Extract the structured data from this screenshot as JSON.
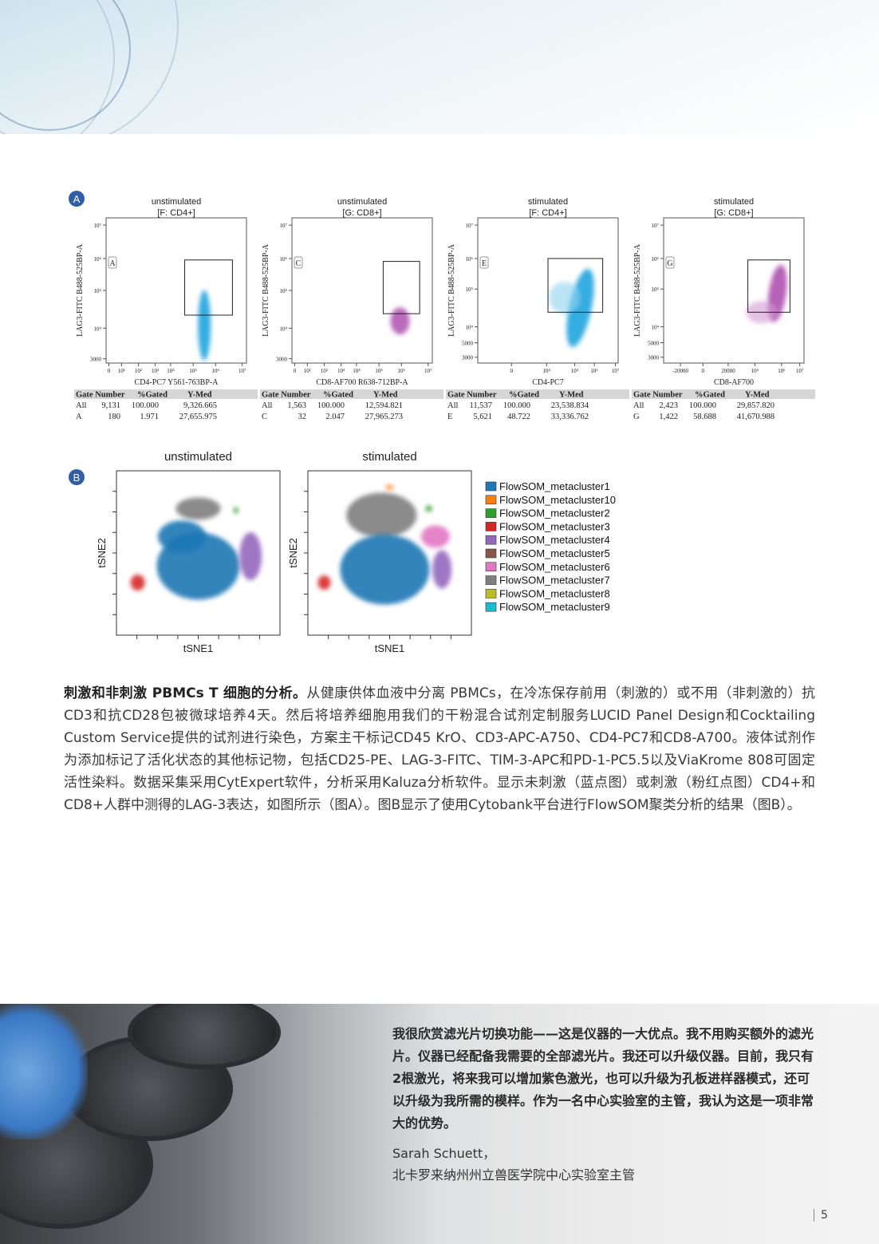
{
  "panel_a": {
    "label": "A",
    "plots": [
      {
        "title": "unstimulated",
        "gate": "[F: CD4+]",
        "gate_letter": "A",
        "x_label": "CD4-PC7 Y561-763BP-A",
        "y_label": "LAG3-FITC B488-525BP-A",
        "yticks": [
          "10⁷",
          "10⁶",
          "10⁵",
          "10⁴",
          "3000"
        ],
        "xticks": [
          "0",
          "10¹",
          "10²",
          "10³",
          "10⁴",
          "10⁵",
          "10⁶",
          "10⁷"
        ],
        "table": {
          "header": [
            "Gate Number",
            "%Gated",
            "Y-Med"
          ],
          "rows": [
            [
              "All",
              "9,131",
              "100.000",
              "9,326.665"
            ],
            [
              "A",
              "180",
              "1.971",
              "27,655.975"
            ]
          ]
        }
      },
      {
        "title": "unstimulated",
        "gate": "[G: CD8+]",
        "gate_letter": "C",
        "x_label": "CD8-AF700 R638-712BP-A",
        "y_label": "LAG3-FITC B488-525BP-A",
        "yticks": [
          "10⁷",
          "10⁶",
          "10⁵",
          "10⁴",
          "3000"
        ],
        "xticks": [
          "0",
          "10¹",
          "10²",
          "10³",
          "10⁴",
          "10⁵",
          "10⁶",
          "10⁷"
        ],
        "table": {
          "header": [
            "Gate Number",
            "%Gated",
            "Y-Med"
          ],
          "rows": [
            [
              "All",
              "1,563",
              "100.000",
              "12,594.821"
            ],
            [
              "C",
              "32",
              "2.047",
              "27,965.273"
            ]
          ]
        }
      },
      {
        "title": "stimulated",
        "gate": "[F: CD4+]",
        "gate_letter": "E",
        "x_label": "CD4-PC7",
        "y_label": "LAG3-FITC B488-525BP-A",
        "yticks": [
          "10⁷",
          "10⁶",
          "10⁵",
          "10⁴",
          "5000",
          "3000"
        ],
        "xticks": [
          "0",
          "10⁴",
          "10⁵",
          "10⁶",
          "10⁷"
        ],
        "table": {
          "header": [
            "Gate Number",
            "%Gated",
            "Y-Med"
          ],
          "rows": [
            [
              "All",
              "11,537",
              "100.000",
              "23,538.834"
            ],
            [
              "E",
              "5,621",
              "48.722",
              "33,336.762"
            ]
          ]
        }
      },
      {
        "title": "stimulated",
        "gate": "[G: CD8+]",
        "gate_letter": "G",
        "x_label": "CD8-AF700",
        "y_label": "LAG3-FITC B488-525BP-A",
        "yticks": [
          "10⁷",
          "10⁶",
          "10⁵",
          "10⁴",
          "5000",
          "3000"
        ],
        "xticks": [
          "-20000",
          "0",
          "20000",
          "10⁵",
          "10⁶",
          "10⁷"
        ],
        "table": {
          "header": [
            "Gate Number",
            "%Gated",
            "Y-Med"
          ],
          "rows": [
            [
              "All",
              "2,423",
              "100.000",
              "29,857.820"
            ],
            [
              "G",
              "1,422",
              "58.688",
              "41,670.988"
            ]
          ]
        }
      }
    ]
  },
  "panel_b": {
    "label": "B",
    "plots": [
      {
        "title": "unstimulated",
        "x_label": "tSNE1",
        "y_label": "tSNE2"
      },
      {
        "title": "stimulated",
        "x_label": "tSNE1",
        "y_label": "tSNE2"
      }
    ],
    "legend": [
      {
        "name": "FlowSOM_metacluster1",
        "color": "#1f77b4"
      },
      {
        "name": "FlowSOM_metacluster10",
        "color": "#ff7f0e"
      },
      {
        "name": "FlowSOM_metacluster2",
        "color": "#2ca02c"
      },
      {
        "name": "FlowSOM_metacluster3",
        "color": "#d62728"
      },
      {
        "name": "FlowSOM_metacluster4",
        "color": "#9467bd"
      },
      {
        "name": "FlowSOM_metacluster5",
        "color": "#8c564b"
      },
      {
        "name": "FlowSOM_metacluster6",
        "color": "#e377c2"
      },
      {
        "name": "FlowSOM_metacluster7",
        "color": "#7f7f7f"
      },
      {
        "name": "FlowSOM_metacluster8",
        "color": "#bcbd22"
      },
      {
        "name": "FlowSOM_metacluster9",
        "color": "#17becf"
      }
    ]
  },
  "body": {
    "lead": "刺激和非刺激 PBMCs T 细胞的分析。",
    "text": "从健康供体血液中分离 PBMCs，在冷冻保存前用（刺激的）或不用（非刺激的）抗CD3和抗CD28包被微球培养4天。然后将培养细胞用我们的干粉混合试剂定制服务LUCID Panel Design和Cocktailing Custom Service提供的试剂进行染色，方案主干标记CD45 KrO、CD3-APC-A750、CD4-PC7和CD8-A700。液体试剂作为添加标记了活化状态的其他标记物，包括CD25-PE、LAG-3-FITC、TIM-3-APC和PD-1-PC5.5以及ViaKrome 808可固定活性染料。数据采集采用CytExpert软件，分析采用Kaluza分析软件。显示未刺激（蓝点图）或刺激（粉红点图）CD4+和CD8+人群中测得的LAG-3表达，如图所示（图A）。图B显示了使用Cytobank平台进行FlowSOM聚类分析的结果（图B）。"
  },
  "quote": {
    "text": "我很欣赏滤光片切换功能——这是仪器的一大优点。我不用购买额外的滤光片。仪器已经配备我需要的全部滤光片。我还可以升级仪器。目前，我只有2根激光，将来我可以增加紫色激光，也可以升级为孔板进样器模式，还可以升级为我所需的模样。作为一名中心实验室的主管，我认为这是一项非常大的优势。",
    "author": "Sarah Schuett，",
    "role": "北卡罗来纳州州立兽医学院中心实验室主管"
  },
  "page_number": "5"
}
